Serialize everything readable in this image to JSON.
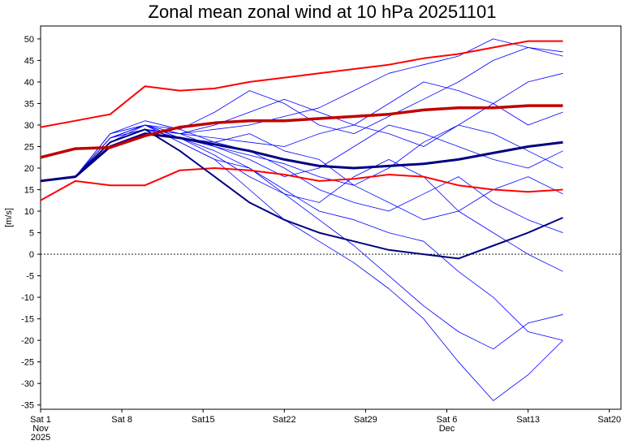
{
  "chart_data": {
    "type": "line",
    "title": "Zonal mean zonal wind at 10 hPa 20251101",
    "ylabel": "[m/s]",
    "x": [
      0,
      3,
      6,
      9,
      12,
      15,
      18,
      21,
      24,
      27,
      30,
      33,
      36,
      39,
      42,
      45
    ],
    "xlim": [
      0,
      50
    ],
    "xticks": [
      {
        "value": 0,
        "label": "Sat 1",
        "sublabels": [
          "Nov",
          "2025"
        ]
      },
      {
        "value": 7,
        "label": "Sat 8"
      },
      {
        "value": 14,
        "label": "Sat15"
      },
      {
        "value": 21,
        "label": "Sat22"
      },
      {
        "value": 28,
        "label": "Sat29"
      },
      {
        "value": 35,
        "label": "Sat 6",
        "sublabels": [
          "Dec"
        ]
      },
      {
        "value": 42,
        "label": "Sat13"
      },
      {
        "value": 49,
        "label": "Sat20"
      }
    ],
    "ylim": [
      -36,
      53
    ],
    "yticks": [
      50,
      45,
      40,
      35,
      30,
      25,
      20,
      15,
      10,
      5,
      0,
      -5,
      -10,
      -15,
      -20,
      -25,
      -30,
      -35
    ],
    "hline": 0,
    "series": [
      {
        "color": "#0000ff",
        "linewidth": 0.8,
        "values": [
          17,
          18,
          27,
          30,
          29,
          33,
          38,
          35,
          30,
          28,
          32,
          36,
          40,
          45,
          48,
          47
        ]
      },
      {
        "color": "#0000ff",
        "linewidth": 0.8,
        "values": [
          17,
          18,
          28,
          30,
          26,
          22,
          15,
          8,
          3,
          -2,
          -8,
          -15,
          -25,
          -34,
          -28,
          -20
        ]
      },
      {
        "color": "#0000ff",
        "linewidth": 0.8,
        "values": [
          17,
          18,
          27,
          29,
          27,
          24,
          20,
          14,
          8,
          2,
          -5,
          -12,
          -18,
          -22,
          -16,
          -14
        ]
      },
      {
        "color": "#0000ff",
        "linewidth": 0.8,
        "values": [
          17,
          18,
          26,
          29,
          28,
          29,
          30,
          32,
          34,
          38,
          42,
          44,
          46,
          50,
          48,
          46
        ]
      },
      {
        "color": "#0000ff",
        "linewidth": 0.8,
        "values": [
          17,
          18,
          27,
          30,
          27,
          25,
          22,
          18,
          20,
          25,
          30,
          28,
          25,
          22,
          20,
          24
        ]
      },
      {
        "color": "#0000ff",
        "linewidth": 0.8,
        "values": [
          17,
          18,
          28,
          31,
          29,
          26,
          24,
          20,
          15,
          12,
          10,
          14,
          18,
          12,
          8,
          5
        ]
      },
      {
        "color": "#0000ff",
        "linewidth": 0.8,
        "values": [
          17,
          18,
          27,
          29,
          28,
          27,
          26,
          25,
          28,
          30,
          35,
          40,
          38,
          35,
          30,
          33
        ]
      },
      {
        "color": "#0000ff",
        "linewidth": 0.8,
        "values": [
          17,
          18,
          26,
          30,
          26,
          22,
          20,
          15,
          10,
          8,
          5,
          3,
          -4,
          -10,
          -18,
          -20
        ]
      },
      {
        "color": "#0000ff",
        "linewidth": 0.8,
        "values": [
          17,
          18,
          27,
          30,
          28,
          30,
          33,
          36,
          33,
          30,
          28,
          25,
          30,
          35,
          40,
          42
        ]
      },
      {
        "color": "#0000ff",
        "linewidth": 0.8,
        "values": [
          17,
          18,
          28,
          30,
          27,
          23,
          18,
          14,
          12,
          18,
          22,
          18,
          10,
          5,
          0,
          -4
        ]
      },
      {
        "color": "#0000ff",
        "linewidth": 0.8,
        "values": [
          17,
          18,
          27,
          30,
          28,
          25,
          23,
          21,
          18,
          16,
          20,
          26,
          30,
          28,
          24,
          20
        ]
      },
      {
        "color": "#0000ff",
        "linewidth": 0.8,
        "values": [
          17,
          18,
          26,
          29,
          27,
          26,
          28,
          24,
          22,
          16,
          12,
          8,
          10,
          15,
          18,
          14
        ]
      },
      {
        "color": "#ff0000",
        "linewidth": 2,
        "values": [
          29.5,
          31,
          32.5,
          39,
          38,
          38.5,
          40,
          41,
          42,
          43,
          44,
          45.5,
          46.5,
          48,
          49.5,
          49.5
        ]
      },
      {
        "color": "#ff0000",
        "linewidth": 2,
        "values": [
          12.5,
          17,
          16,
          16,
          19.5,
          20,
          19.5,
          18.5,
          17,
          17.5,
          18.5,
          18,
          16,
          15,
          14.5,
          15
        ]
      },
      {
        "color": "#000080",
        "linewidth": 2,
        "values": [
          17,
          18,
          26,
          29,
          24,
          18,
          12,
          8,
          5,
          3,
          1,
          0,
          -1,
          2,
          5,
          8.5
        ]
      },
      {
        "color": "#000080",
        "linewidth": 3,
        "values": [
          17,
          18,
          25,
          28,
          27,
          25.5,
          24,
          22,
          20.5,
          20,
          20.5,
          21,
          22,
          23.5,
          25,
          26
        ]
      },
      {
        "color": "#c00000",
        "linewidth": 3.5,
        "values": [
          22.5,
          24.5,
          24.8,
          27.5,
          29.5,
          30.5,
          31,
          31,
          31.5,
          32,
          32.5,
          33.5,
          34,
          34,
          34.5,
          34.5
        ]
      }
    ]
  }
}
